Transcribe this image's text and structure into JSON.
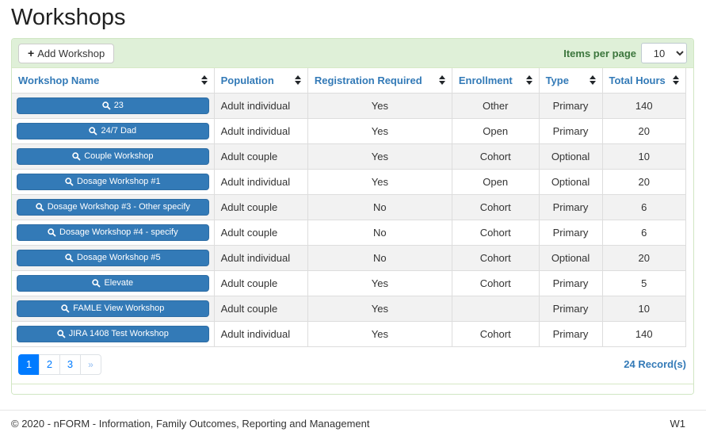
{
  "page": {
    "title": "Workshops"
  },
  "toolbar": {
    "add_button_label": "Add Workshop",
    "add_icon_glyph": "+",
    "items_per_page_label": "Items per page",
    "items_per_page_value": "10"
  },
  "table": {
    "columns": [
      "Workshop Name",
      "Population",
      "Registration Required",
      "Enrollment",
      "Type",
      "Total Hours"
    ],
    "rows": [
      {
        "name": "23",
        "population": "Adult individual",
        "registration_required": "Yes",
        "enrollment": "Other",
        "type": "Primary",
        "total_hours": "140"
      },
      {
        "name": "24/7 Dad",
        "population": "Adult individual",
        "registration_required": "Yes",
        "enrollment": "Open",
        "type": "Primary",
        "total_hours": "20"
      },
      {
        "name": "Couple Workshop",
        "population": "Adult couple",
        "registration_required": "Yes",
        "enrollment": "Cohort",
        "type": "Optional",
        "total_hours": "10"
      },
      {
        "name": "Dosage Workshop #1",
        "population": "Adult individual",
        "registration_required": "Yes",
        "enrollment": "Open",
        "type": "Optional",
        "total_hours": "20"
      },
      {
        "name": "Dosage Workshop #3 - Other specify",
        "population": "Adult couple",
        "registration_required": "No",
        "enrollment": "Cohort",
        "type": "Primary",
        "total_hours": "6"
      },
      {
        "name": "Dosage Workshop #4 - specify",
        "population": "Adult couple",
        "registration_required": "No",
        "enrollment": "Cohort",
        "type": "Primary",
        "total_hours": "6"
      },
      {
        "name": "Dosage Workshop #5",
        "population": "Adult individual",
        "registration_required": "No",
        "enrollment": "Cohort",
        "type": "Optional",
        "total_hours": "20"
      },
      {
        "name": "Elevate",
        "population": "Adult couple",
        "registration_required": "Yes",
        "enrollment": "Cohort",
        "type": "Primary",
        "total_hours": "5"
      },
      {
        "name": "FAMLE View Workshop",
        "population": "Adult couple",
        "registration_required": "Yes",
        "enrollment": "",
        "type": "Primary",
        "total_hours": "10"
      },
      {
        "name": "JIRA 1408 Test Workshop",
        "population": "Adult individual",
        "registration_required": "Yes",
        "enrollment": "Cohort",
        "type": "Primary",
        "total_hours": "140"
      }
    ]
  },
  "pagination": {
    "pages": [
      "1",
      "2",
      "3"
    ],
    "active_page": "1",
    "next_label": "»",
    "record_count": "24 Record(s)"
  },
  "footer": {
    "copyright": "© 2020 - nFORM - Information, Family Outcomes, Reporting and Management",
    "version": "W1"
  },
  "colors": {
    "panel_heading_bg": "#dff0d8",
    "panel_border": "#d6e9c6",
    "header_link_blue": "#337ab7",
    "name_button_blue": "#337ab7",
    "active_page_blue": "#007bff",
    "stripe_gray": "#f2f2f2"
  }
}
